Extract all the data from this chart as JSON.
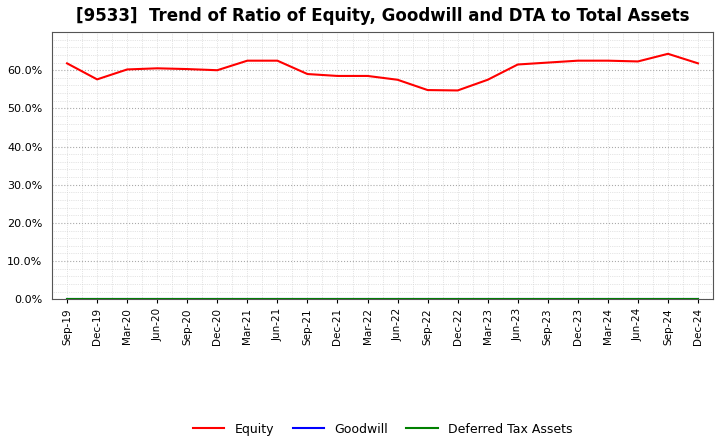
{
  "title": "[9533]  Trend of Ratio of Equity, Goodwill and DTA to Total Assets",
  "x_labels": [
    "Sep-19",
    "Dec-19",
    "Mar-20",
    "Jun-20",
    "Sep-20",
    "Dec-20",
    "Mar-21",
    "Jun-21",
    "Sep-21",
    "Dec-21",
    "Mar-22",
    "Jun-22",
    "Sep-22",
    "Dec-22",
    "Mar-23",
    "Jun-23",
    "Sep-23",
    "Dec-23",
    "Mar-24",
    "Jun-24",
    "Sep-24",
    "Dec-24"
  ],
  "equity": [
    61.8,
    57.6,
    60.2,
    60.5,
    60.3,
    60.0,
    62.5,
    62.5,
    59.0,
    58.5,
    58.5,
    57.5,
    54.8,
    54.7,
    57.5,
    61.5,
    62.0,
    62.5,
    62.5,
    62.3,
    64.3,
    61.8
  ],
  "goodwill": [
    0.0,
    0.0,
    0.0,
    0.0,
    0.0,
    0.0,
    0.0,
    0.0,
    0.0,
    0.0,
    0.0,
    0.0,
    0.0,
    0.0,
    0.0,
    0.0,
    0.0,
    0.0,
    0.0,
    0.0,
    0.0,
    0.0
  ],
  "dta": [
    0.0,
    0.0,
    0.0,
    0.0,
    0.0,
    0.0,
    0.0,
    0.0,
    0.0,
    0.0,
    0.0,
    0.0,
    0.0,
    0.0,
    0.0,
    0.0,
    0.0,
    0.0,
    0.0,
    0.0,
    0.0,
    0.0
  ],
  "equity_color": "#ff0000",
  "goodwill_color": "#0000ff",
  "dta_color": "#008000",
  "ylim": [
    0,
    70
  ],
  "yticks": [
    0,
    10,
    20,
    30,
    40,
    50,
    60
  ],
  "background_color": "#ffffff",
  "plot_bg_color": "#ffffff",
  "major_grid_color": "#aaaaaa",
  "minor_grid_color": "#cccccc",
  "title_fontsize": 12,
  "legend_labels": [
    "Equity",
    "Goodwill",
    "Deferred Tax Assets"
  ]
}
